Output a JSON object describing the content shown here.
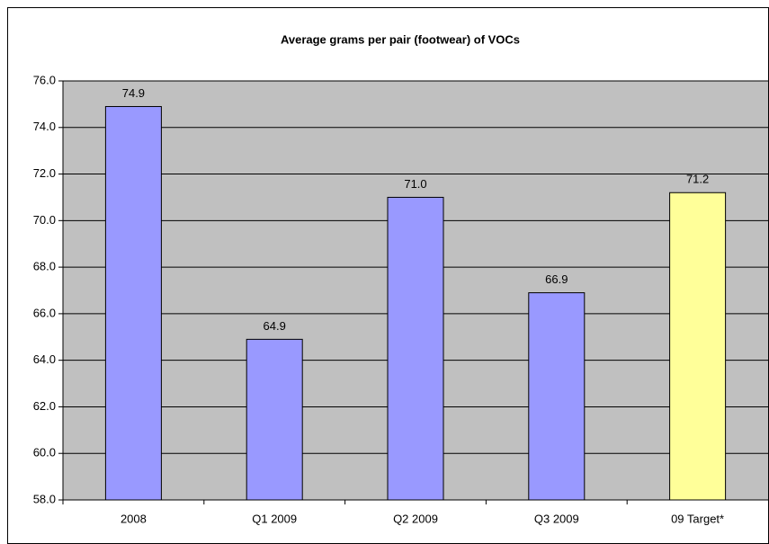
{
  "chart_data": {
    "type": "bar",
    "title": "Average grams per pair (footwear) of VOCs",
    "categories": [
      "2008",
      "Q1 2009",
      "Q2 2009",
      "Q3 2009",
      "09 Target*"
    ],
    "values": [
      74.9,
      64.9,
      71.0,
      66.9,
      71.2
    ],
    "value_labels": [
      "74.9",
      "64.9",
      "71.0",
      "66.9",
      "71.2"
    ],
    "colors": [
      "#9999ff",
      "#9999ff",
      "#9999ff",
      "#9999ff",
      "#ffff99"
    ],
    "ylim": [
      58,
      76
    ],
    "yticks": [
      {
        "value": 58,
        "label": "58.0"
      },
      {
        "value": 60,
        "label": "60.0"
      },
      {
        "value": 62,
        "label": "62.0"
      },
      {
        "value": 64,
        "label": "64.0"
      },
      {
        "value": 66,
        "label": "66.0"
      },
      {
        "value": 68,
        "label": "68.0"
      },
      {
        "value": 70,
        "label": "70.0"
      },
      {
        "value": 72,
        "label": "72.0"
      },
      {
        "value": 74,
        "label": "74.0"
      },
      {
        "value": 76,
        "label": "76.0"
      }
    ],
    "grid": true,
    "plot_background": "#c0c0c0"
  }
}
